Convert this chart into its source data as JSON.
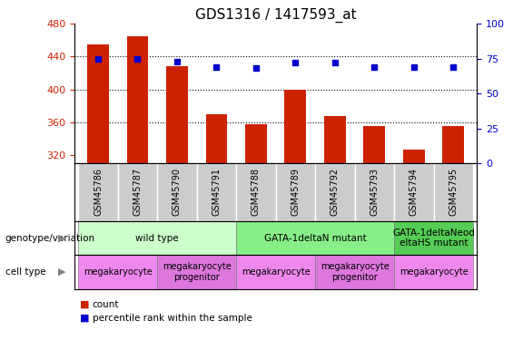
{
  "title": "GDS1316 / 1417593_at",
  "samples": [
    "GSM45786",
    "GSM45787",
    "GSM45790",
    "GSM45791",
    "GSM45788",
    "GSM45789",
    "GSM45792",
    "GSM45793",
    "GSM45794",
    "GSM45795"
  ],
  "counts": [
    455,
    465,
    428,
    370,
    358,
    400,
    368,
    355,
    327,
    355
  ],
  "percentiles": [
    75,
    75,
    73,
    69,
    68,
    72,
    72,
    69,
    69,
    69
  ],
  "ylim_left": [
    310,
    480
  ],
  "ylim_right": [
    0,
    100
  ],
  "yticks_left": [
    320,
    360,
    400,
    440,
    480
  ],
  "yticks_right": [
    0,
    25,
    50,
    75,
    100
  ],
  "bar_color": "#cc2200",
  "dot_color": "#0000cc",
  "background_color": "#ffffff",
  "sample_box_color": "#cccccc",
  "genotype_groups": [
    {
      "label": "wild type",
      "start": 0,
      "end": 3,
      "color": "#ccffcc"
    },
    {
      "label": "GATA-1deltaN mutant",
      "start": 4,
      "end": 7,
      "color": "#88ee88"
    },
    {
      "label": "GATA-1deltaNeod\neltaHS mutant",
      "start": 8,
      "end": 9,
      "color": "#55cc55"
    }
  ],
  "cell_type_groups": [
    {
      "label": "megakaryocyte",
      "start": 0,
      "end": 1,
      "color": "#ee88ee"
    },
    {
      "label": "megakaryocyte\nprogenitor",
      "start": 2,
      "end": 3,
      "color": "#dd77dd"
    },
    {
      "label": "megakaryocyte",
      "start": 4,
      "end": 5,
      "color": "#ee88ee"
    },
    {
      "label": "megakaryocyte\nprogenitor",
      "start": 6,
      "end": 7,
      "color": "#dd77dd"
    },
    {
      "label": "megakaryocyte",
      "start": 8,
      "end": 9,
      "color": "#ee88ee"
    }
  ],
  "left_label_genotype": "genotype/variation",
  "left_label_celltype": "cell type",
  "legend_count": "count",
  "legend_percentile": "percentile rank within the sample",
  "n_samples": 10
}
